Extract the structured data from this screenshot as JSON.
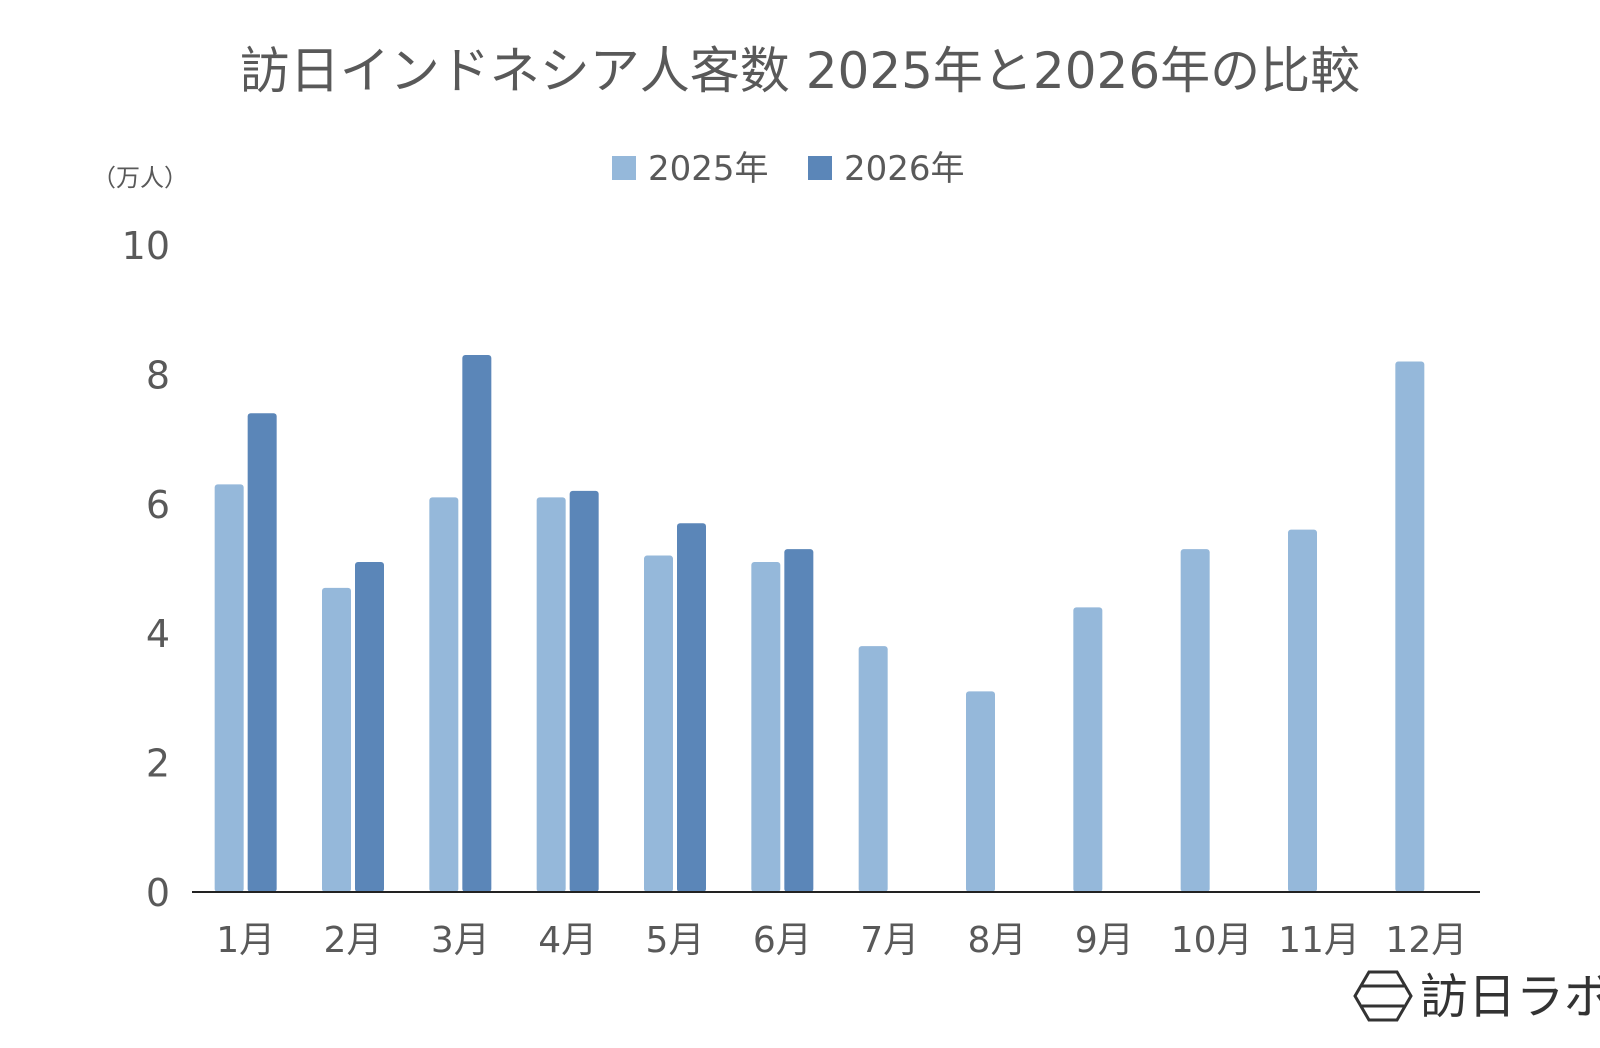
{
  "chart_data": {
    "type": "bar",
    "title": "訪日インドネシア人客数 2025年と2026年の比較",
    "unit_label": "（万人）",
    "categories": [
      "1月",
      "2月",
      "3月",
      "4月",
      "5月",
      "6月",
      "7月",
      "8月",
      "9月",
      "10月",
      "11月",
      "12月"
    ],
    "series": [
      {
        "name": "2025年",
        "color": "#95B8DA",
        "values": [
          6.3,
          4.7,
          6.1,
          6.1,
          5.2,
          5.1,
          3.8,
          3.1,
          4.4,
          5.3,
          5.6,
          8.2
        ]
      },
      {
        "name": "2026年",
        "color": "#5B86B8",
        "values": [
          7.4,
          5.1,
          8.3,
          6.2,
          5.7,
          5.3,
          null,
          null,
          null,
          null,
          null,
          null
        ]
      }
    ],
    "ylim": [
      0,
      10
    ],
    "yticks": [
      0,
      2,
      4,
      6,
      8,
      10
    ],
    "ytick_labels": [
      "0",
      "2",
      "4",
      "6",
      "8",
      "10"
    ],
    "grid": false,
    "legend_position": "top-center"
  },
  "branding": {
    "logo_text": "訪日ラボ",
    "logo_icon": "hexagon-logo-icon"
  }
}
